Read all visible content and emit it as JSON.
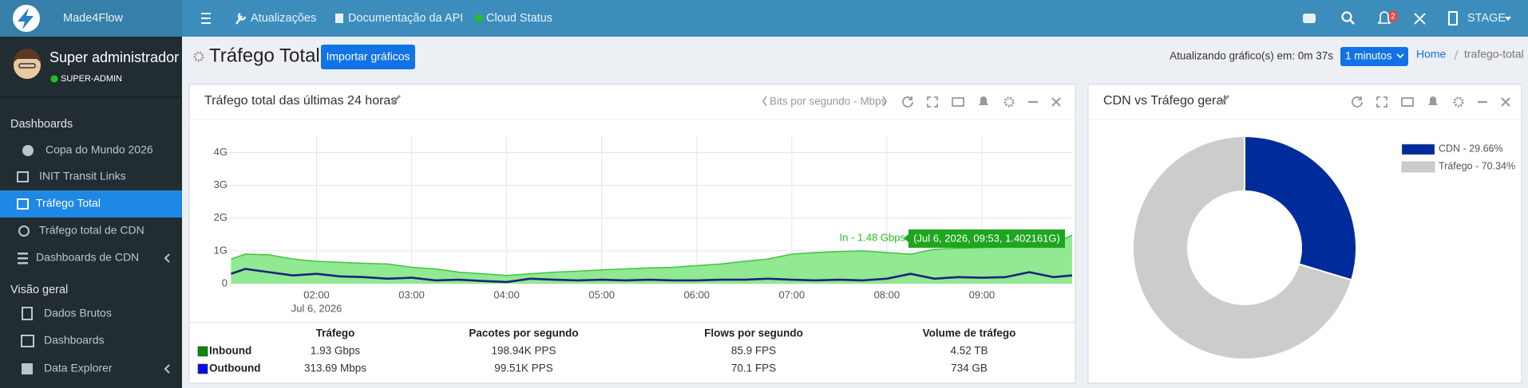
{
  "topbar": {
    "brand": "Made4Flow",
    "links": [
      "Atualizações",
      "Documentação da API",
      "Cloud Status"
    ],
    "notification_count": "2",
    "environment": "STAGE"
  },
  "sidebar": {
    "user": {
      "name": "Super administrador",
      "role": "SUPER-ADMIN"
    },
    "sections": [
      {
        "title": "Dashboards",
        "items": [
          "Copa do Mundo 2026",
          "INIT Transit Links",
          "Tráfego Total",
          "Tráfego total de CDN",
          "Dashboards de CDN"
        ]
      },
      {
        "title": "Visão geral",
        "items": [
          "Dados Brutos",
          "Dashboards",
          "Data Explorer"
        ]
      }
    ]
  },
  "page": {
    "title": "Tráfego Total",
    "button": "Importar gráficos",
    "refresh_label": "Atualizando gráfico(s) em: 0m 37s",
    "refresh_interval": "1 minutos",
    "breadcrumb": [
      "Home",
      "trafego-total"
    ]
  },
  "chart_data": [
    {
      "type": "area",
      "title": "Tráfego total das últimas 24 horas",
      "unit_selector": "Bits por segundo - Mbps",
      "x": [
        1.1,
        1.25,
        1.5,
        1.75,
        2.0,
        2.25,
        2.5,
        2.75,
        3.0,
        3.25,
        3.5,
        3.75,
        4.0,
        4.25,
        4.5,
        4.75,
        5.0,
        5.25,
        5.5,
        5.75,
        6.0,
        6.25,
        6.5,
        6.75,
        7.0,
        7.25,
        7.5,
        7.75,
        8.0,
        8.25,
        8.5,
        8.75,
        9.0,
        9.25,
        9.5,
        9.75,
        9.95
      ],
      "series": [
        {
          "name": "Inbound",
          "color": "#43c243",
          "fill": "#8be88b",
          "values": [
            0.75,
            0.9,
            0.88,
            0.75,
            0.68,
            0.65,
            0.62,
            0.6,
            0.5,
            0.45,
            0.35,
            0.3,
            0.25,
            0.3,
            0.35,
            0.38,
            0.42,
            0.45,
            0.48,
            0.5,
            0.55,
            0.6,
            0.68,
            0.75,
            0.9,
            0.95,
            0.98,
            1.0,
            0.95,
            0.9,
            1.05,
            1.08,
            1.1,
            1.12,
            1.15,
            1.2,
            1.48
          ]
        },
        {
          "name": "Outbound",
          "color": "#1a237e",
          "values": [
            0.3,
            0.45,
            0.35,
            0.25,
            0.3,
            0.22,
            0.2,
            0.15,
            0.18,
            0.1,
            0.12,
            0.08,
            0.05,
            0.15,
            0.12,
            0.1,
            0.12,
            0.1,
            0.12,
            0.1,
            0.1,
            0.12,
            0.12,
            0.15,
            0.12,
            0.1,
            0.12,
            0.1,
            0.15,
            0.3,
            0.15,
            0.2,
            0.18,
            0.2,
            0.35,
            0.2,
            0.25
          ]
        }
      ],
      "xlim": [
        1.08,
        9.95
      ],
      "xticks": [
        {
          "value": 2,
          "label": "02:00"
        },
        {
          "value": 3,
          "label": "03:00"
        },
        {
          "value": 4,
          "label": "04:00"
        },
        {
          "value": 5,
          "label": "05:00"
        },
        {
          "value": 6,
          "label": "06:00"
        },
        {
          "value": 7,
          "label": "07:00"
        },
        {
          "value": 8,
          "label": "08:00"
        },
        {
          "value": 9,
          "label": "09:00"
        }
      ],
      "x_date": "Jul 6, 2026",
      "ylim": [
        0,
        4.5
      ],
      "yticks": [
        0,
        {
          "value": 1,
          "label": "1G"
        },
        {
          "value": 2,
          "label": "2G"
        },
        {
          "value": 3,
          "label": "3G"
        },
        {
          "value": 4,
          "label": "4G"
        }
      ],
      "grid": true,
      "annotations": [
        "In - 1.48 Gbps",
        "(Jul 6, 2026, 09:53, 1.402161G)"
      ]
    },
    {
      "type": "pie",
      "title": "CDN vs Tráfego geral",
      "donut": true,
      "values": [
        29.66,
        70.34
      ],
      "value_labels": [
        "CDN - 29.66%",
        "Tráfego - 70.34%"
      ],
      "colors": [
        "#002b9a",
        "#cccccc"
      ]
    }
  ],
  "table": {
    "headers": [
      "Tráfego",
      "Pacotes por segundo",
      "Flows por segundo",
      "Volume de tráfego"
    ],
    "rows": [
      {
        "swatch": "#0a8a0a",
        "cells": [
          "1.93 Gbps",
          "198.94K PPS",
          "85.9 FPS",
          "4.52 TB"
        ]
      },
      {
        "swatch": "#0a0aee",
        "cells": [
          "313.69 Mbps",
          "99.51K PPS",
          "70.1 FPS",
          "734 GB"
        ]
      }
    ]
  }
}
